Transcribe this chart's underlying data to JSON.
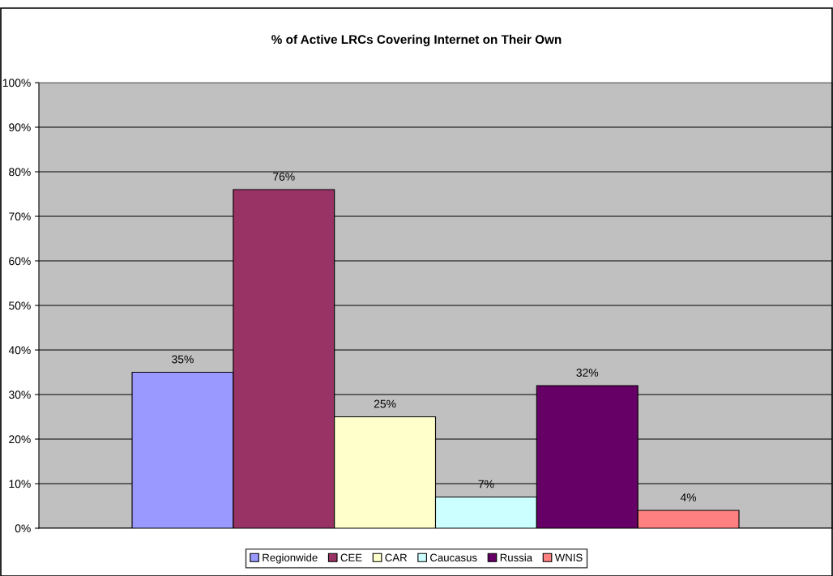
{
  "chart_data": {
    "type": "bar",
    "title": "% of Active LRCs Covering Internet on Their Own",
    "categories": [
      null
    ],
    "series": [
      {
        "name": "Regionwide",
        "color": "#9999ff",
        "values": [
          35
        ],
        "value_labels": [
          "35%"
        ]
      },
      {
        "name": "CEE",
        "color": "#993366",
        "values": [
          76
        ],
        "value_labels": [
          "76%"
        ]
      },
      {
        "name": "CAR",
        "color": "#ffffcc",
        "values": [
          25
        ],
        "value_labels": [
          "25%"
        ]
      },
      {
        "name": "Caucasus",
        "color": "#ccffff",
        "values": [
          7
        ],
        "value_labels": [
          "7%"
        ]
      },
      {
        "name": "Russia",
        "color": "#660066",
        "values": [
          32
        ],
        "value_labels": [
          "32%"
        ]
      },
      {
        "name": "WNIS",
        "color": "#ff8080",
        "values": [
          4
        ],
        "value_labels": [
          "4%"
        ]
      }
    ],
    "ylim": [
      0,
      100
    ],
    "yticks": [
      {
        "value": 0,
        "label": "0%"
      },
      {
        "value": 10,
        "label": "10%"
      },
      {
        "value": 20,
        "label": "20%"
      },
      {
        "value": 30,
        "label": "30%"
      },
      {
        "value": 40,
        "label": "40%"
      },
      {
        "value": 50,
        "label": "50%"
      },
      {
        "value": 60,
        "label": "60%"
      },
      {
        "value": 70,
        "label": "70%"
      },
      {
        "value": 80,
        "label": "80%"
      },
      {
        "value": 90,
        "label": "90%"
      },
      {
        "value": 100,
        "label": "100%"
      }
    ],
    "grid": "y",
    "legend": "bottom"
  }
}
